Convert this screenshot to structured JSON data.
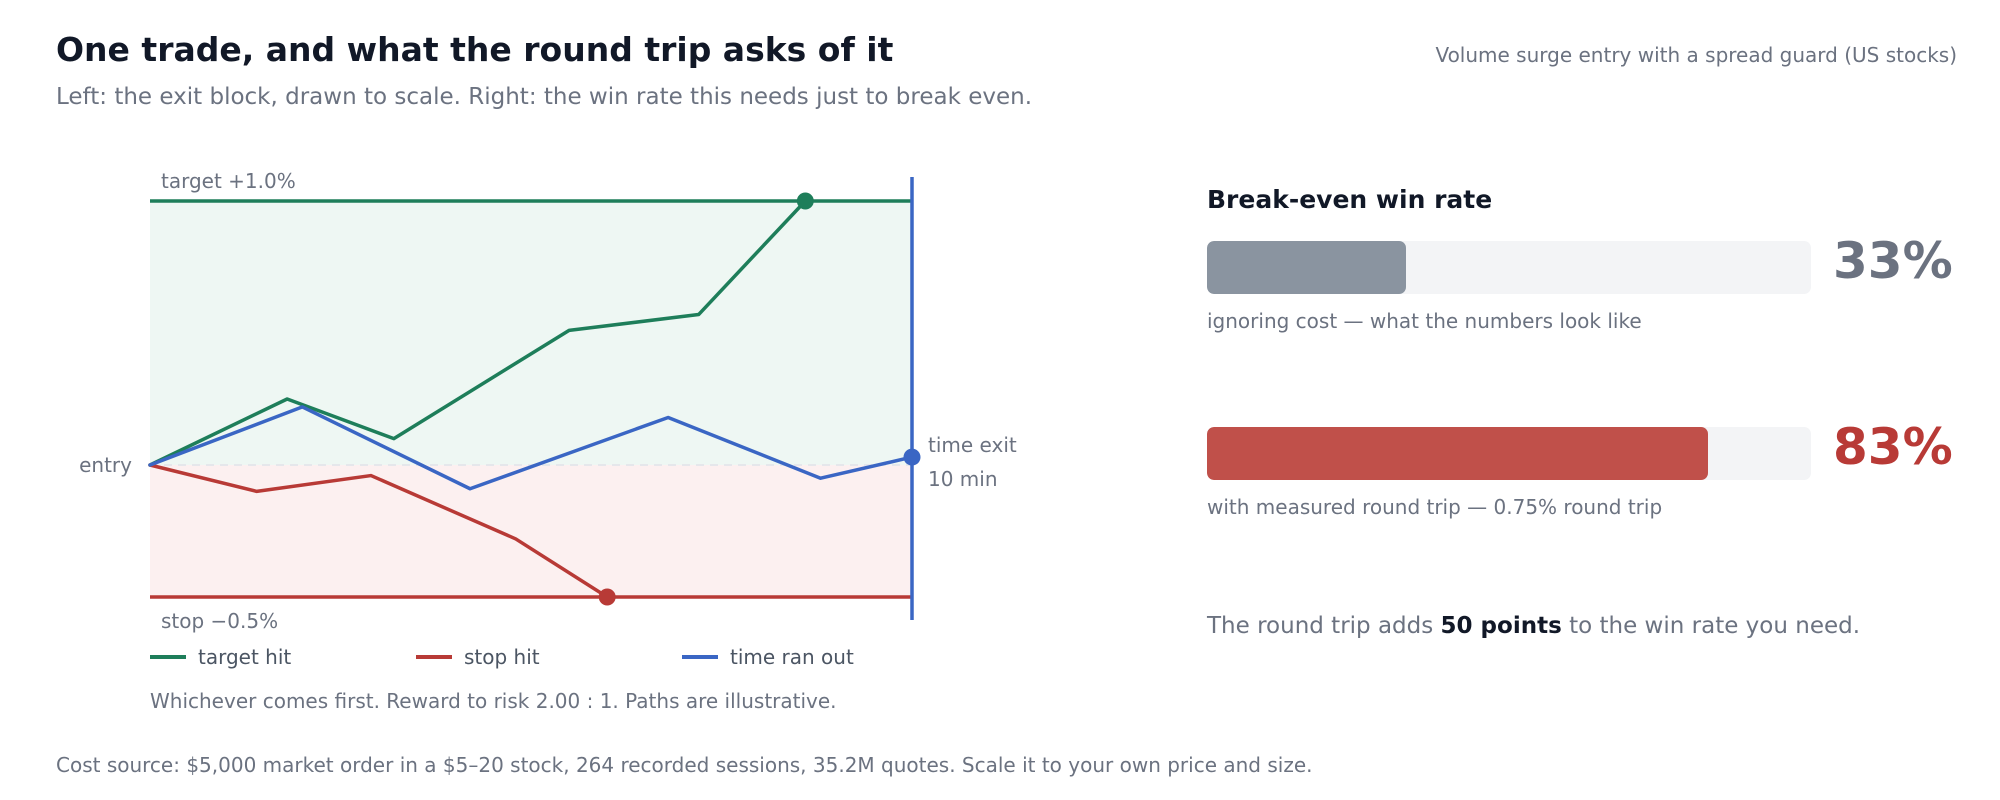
{
  "header": {
    "title": "One trade, and what the round trip asks of it",
    "subtitle": "Left: the exit block, drawn to scale. Right: the win rate this needs just to break even.",
    "context": "Volume surge entry with a spread guard (US stocks)"
  },
  "colors": {
    "target": "#1e7e5a",
    "stop": "#b83a36",
    "time": "#3a66c4",
    "target_zone": "#eef7f3",
    "stop_zone": "#fcf0f0",
    "bar_grey": "#8a94a0",
    "bar_red": "#c0504a",
    "value_red": "#b83a36",
    "value_grey": "#6b7280"
  },
  "chart_data": [
    {
      "type": "line",
      "title": "",
      "xlabel": "",
      "ylabel": "",
      "x_unit": "step",
      "y_unit": "% from entry",
      "xlim": [
        0,
        10
      ],
      "ylim": [
        -0.5,
        1.0
      ],
      "levels": {
        "target": {
          "label": "target +1.0%",
          "value": 1.0
        },
        "stop": {
          "label": "stop −0.5%",
          "value": -0.5
        },
        "entry": {
          "label": "entry",
          "value": 0.0
        },
        "time_exit": {
          "label_lines": [
            "time exit",
            "10 min"
          ],
          "value": 10
        }
      },
      "series": [
        {
          "name": "target hit",
          "color": "#1e7e5a",
          "x": [
            0,
            1.8,
            3.2,
            5.5,
            7.2,
            8.6
          ],
          "y": [
            0.0,
            0.25,
            0.1,
            0.51,
            0.57,
            1.0
          ],
          "end_marker": true
        },
        {
          "name": "stop hit",
          "color": "#b83a36",
          "x": [
            0,
            1.4,
            2.9,
            4.8,
            6.0
          ],
          "y": [
            0.0,
            -0.1,
            -0.04,
            -0.28,
            -0.5
          ],
          "end_marker": true
        },
        {
          "name": "time ran out",
          "color": "#3a66c4",
          "x": [
            0,
            2.0,
            4.2,
            6.8,
            8.8,
            10
          ],
          "y": [
            0.0,
            0.22,
            -0.09,
            0.18,
            -0.05,
            0.03
          ],
          "end_marker": true
        }
      ],
      "legend_position": "bottom",
      "note": "Whichever comes first. Reward to risk 2.00 : 1. Paths are illustrative."
    },
    {
      "type": "bar",
      "title": "Break-even win rate",
      "orientation": "horizontal",
      "xlim": [
        0,
        100
      ],
      "bars": [
        {
          "value": 33,
          "value_label": "33%",
          "caption": "ignoring cost — what the numbers look like",
          "color": "#8a94a0",
          "value_color": "#6b7280"
        },
        {
          "value": 83,
          "value_label": "83%",
          "caption": "with measured round trip — 0.75% round trip",
          "color": "#c0504a",
          "value_color": "#b83a36"
        }
      ]
    }
  ],
  "conclusion": {
    "prefix": "The round trip adds ",
    "emphasis": "50 points",
    "suffix": " to the win rate you need."
  },
  "footnote": "Cost source: $5,000 market order in a $5–20 stock, 264 recorded sessions, 35.2M quotes. Scale it to your own price and size."
}
